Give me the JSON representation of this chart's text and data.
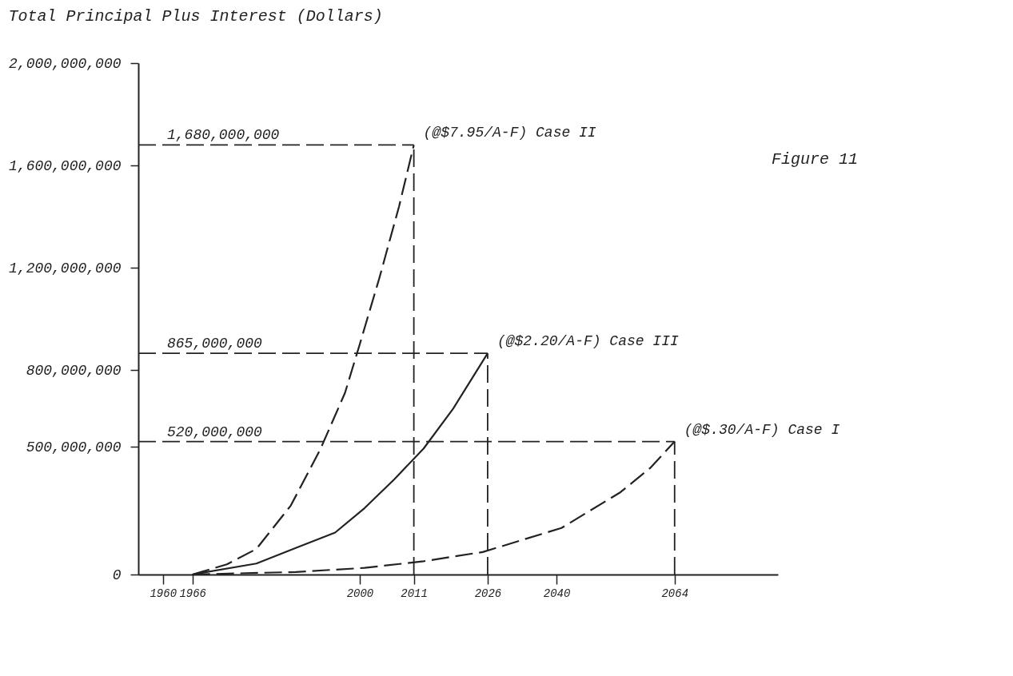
{
  "chart_data": {
    "type": "line",
    "ylabel": "Total Principal Plus Interest (Dollars)",
    "xlim": [
      1955,
      2085
    ],
    "xticks": [
      1960,
      1966,
      2000,
      2011,
      2026,
      2040,
      2064
    ],
    "ylim": [
      0,
      2000000000
    ],
    "yticks": [
      0,
      {
        "value": 500000000,
        "label": "500,000,000"
      },
      {
        "value": 800000000,
        "label": "800,000,000"
      },
      {
        "value": 1200000000,
        "label": "1,200,000,000"
      },
      {
        "value": 1600000000,
        "label": "1,600,000,000"
      },
      {
        "value": 2000000000,
        "label": "2,000,000,000"
      }
    ],
    "grid": false,
    "series": [
      {
        "name": "(@$7.95/A-F) Case II",
        "color": "#222222",
        "line_style": "dashed",
        "x": [
          1966,
          1973,
          1979,
          1986,
          1992,
          1997,
          2000,
          2004,
          2008,
          2011
        ],
        "values": [
          0,
          40000000,
          100000000,
          270000000,
          490000000,
          710000000,
          900000000,
          1160000000,
          1440000000,
          1680000000
        ]
      },
      {
        "name": "(@$2.20/A-F) Case III",
        "color": "#222222",
        "line_style": "solid",
        "x": [
          1966,
          1979,
          1987,
          1995,
          2001,
          2007,
          2013,
          2019,
          2026
        ],
        "values": [
          0,
          43000000,
          104000000,
          164000000,
          260000000,
          372000000,
          493000000,
          649000000,
          865000000
        ]
      },
      {
        "name": "(@$.30/A-F) Case I",
        "color": "#222222",
        "line_style": "dashed",
        "x": [
          1966,
          1987,
          2001,
          2013,
          2025,
          2041,
          2053,
          2059,
          2064
        ],
        "values": [
          0,
          10000000,
          26000000,
          52000000,
          88000000,
          182000000,
          322000000,
          416000000,
          520000000
        ]
      }
    ],
    "ref_lines": [
      {
        "axis": "y",
        "value": 1680000000,
        "label": "1,680,000,000",
        "line_style": "dashed",
        "color": "#222222"
      },
      {
        "axis": "y",
        "value": 865000000,
        "label": "865,000,000",
        "line_style": "dashed",
        "color": "#222222"
      },
      {
        "axis": "y",
        "value": 520000000,
        "label": "520,000,000",
        "line_style": "dashed",
        "color": "#222222"
      },
      {
        "axis": "x",
        "value": 2011,
        "line_style": "dashed",
        "color": "#222222"
      },
      {
        "axis": "x",
        "value": 2026,
        "line_style": "dashed",
        "color": "#222222"
      },
      {
        "axis": "x",
        "value": 2064,
        "line_style": "dashed",
        "color": "#222222"
      }
    ],
    "annotations": [
      "Figure 11"
    ]
  }
}
